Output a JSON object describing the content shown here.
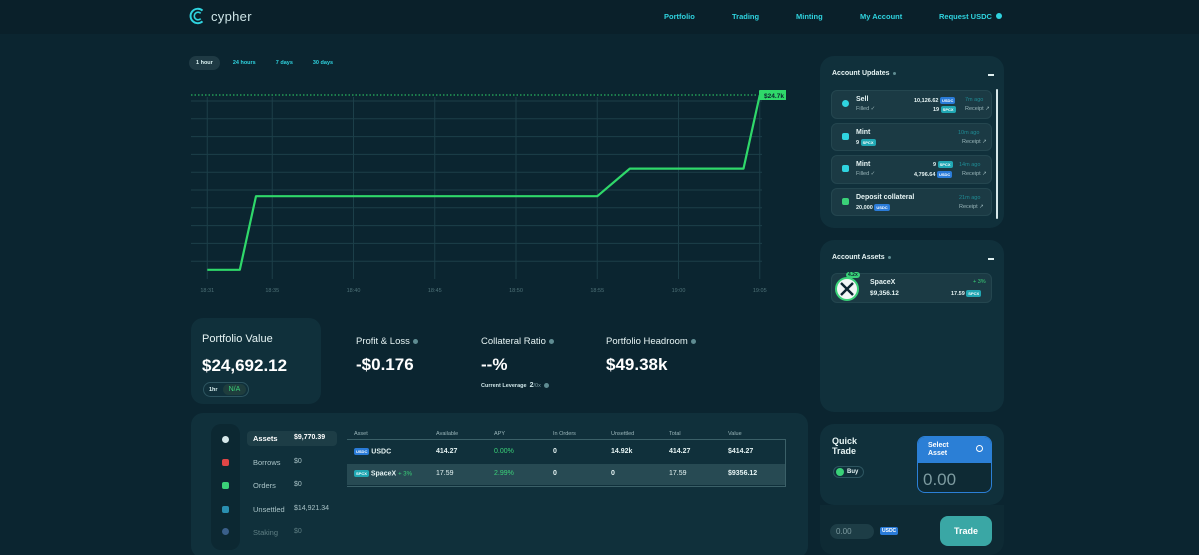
{
  "brand": {
    "name": "cypher",
    "accent": "#2fd3df",
    "green": "#3ad178"
  },
  "nav": {
    "portfolio": "Portfolio",
    "trading": "Trading",
    "minting": "Minting",
    "account": "My Account",
    "request": "Request USDC"
  },
  "range_tabs": [
    "1 hour",
    "24 hours",
    "7 days",
    "30 days"
  ],
  "chart_data": {
    "type": "line",
    "x": [
      "18:31",
      "18:33",
      "18:34",
      "18:35",
      "18:38",
      "18:40",
      "18:45",
      "18:50",
      "18:54",
      "18:55",
      "18:57",
      "19:00",
      "19:03",
      "19:04",
      "19:05"
    ],
    "y": [
      24692.1,
      24692.1,
      24692.9,
      24692.9,
      24692.9,
      24692.9,
      24692.9,
      24692.9,
      24692.9,
      24692.9,
      24693.2,
      24693.2,
      24693.2,
      24693.2,
      24694.0
    ],
    "x_ticks": [
      "18:31",
      "18:35",
      "18:40",
      "18:45",
      "18:50",
      "18:55",
      "19:00",
      "19:05"
    ],
    "current_label": "$24.7k",
    "color": "#2fd86a",
    "grid": true
  },
  "stats": {
    "portfolio_value": {
      "label": "Portfolio Value",
      "value": "$24,692.12",
      "period": "1hr",
      "change": "N/A"
    },
    "pnl": {
      "label": "Profit & Loss",
      "value": "-$0.176"
    },
    "collateral": {
      "label": "Collateral Ratio",
      "value": "--%",
      "leverage_label": "Current Leverage",
      "leverage_value": "2",
      "leverage_max": "/0x"
    },
    "headroom": {
      "label": "Portfolio Headroom",
      "value": "$49.38k"
    }
  },
  "categories": [
    {
      "label": "Assets",
      "value": "$9,770.39"
    },
    {
      "label": "Borrows",
      "value": "$0"
    },
    {
      "label": "Orders",
      "value": "$0"
    },
    {
      "label": "Unsettled",
      "value": "$14,921.34"
    },
    {
      "label": "Staking",
      "value": "$0"
    }
  ],
  "table": {
    "headers": [
      "Asset",
      "Available",
      "APY",
      "In Orders",
      "Unsettled",
      "Total",
      "Value"
    ],
    "rows": [
      {
        "badge": "USDC",
        "asset": "USDC",
        "change": "",
        "available": "414.27",
        "apy": "0.00%",
        "orders": "0",
        "unsettled": "14.92k",
        "total": "414.27",
        "value": "$414.27"
      },
      {
        "badge": "SPCX",
        "asset": "SpaceX",
        "change": "+ 3%",
        "available": "17.59",
        "apy": "2.99%",
        "orders": "0",
        "unsettled": "0",
        "total": "17.59",
        "value": "$9356.12"
      }
    ]
  },
  "account_updates": {
    "title": "Account Updates",
    "items": [
      {
        "title": "Sell",
        "sub": "Filled ✓",
        "n1": "10,126.62",
        "b1": "USDC",
        "n2": "19",
        "b2": "SPCX",
        "time": "7m ago",
        "receipt": "Receipt ↗"
      },
      {
        "title": "Mint",
        "sub": "9",
        "b_sub": "SPCX",
        "time": "10m ago",
        "receipt": "Receipt ↗"
      },
      {
        "title": "Mint",
        "sub": "Filled ✓",
        "n1": "9",
        "b1": "SPCX",
        "n2": "4,796.64",
        "b2": "USDC",
        "time": "14m ago",
        "receipt": "Receipt ↗"
      },
      {
        "title": "Deposit collateral",
        "sub": "20,000",
        "b_sub": "USDC",
        "time": "21m ago",
        "receipt": "Receipt ↗"
      }
    ]
  },
  "account_assets": {
    "title": "Account Assets",
    "items": [
      {
        "name": "SpaceX",
        "leverage": "4.2x",
        "value": "$9,356.12",
        "change": "+ 3%",
        "qty": "17.59",
        "badge": "SPCX"
      }
    ]
  },
  "quick_trade": {
    "title_line1": "Quick",
    "title_line2": "Trade",
    "side": "Buy",
    "select_line1": "Select",
    "select_line2": "Asset",
    "amount": "0.00",
    "pay_amount": "0.00",
    "pay_badge": "USDC",
    "trade_button": "Trade"
  }
}
